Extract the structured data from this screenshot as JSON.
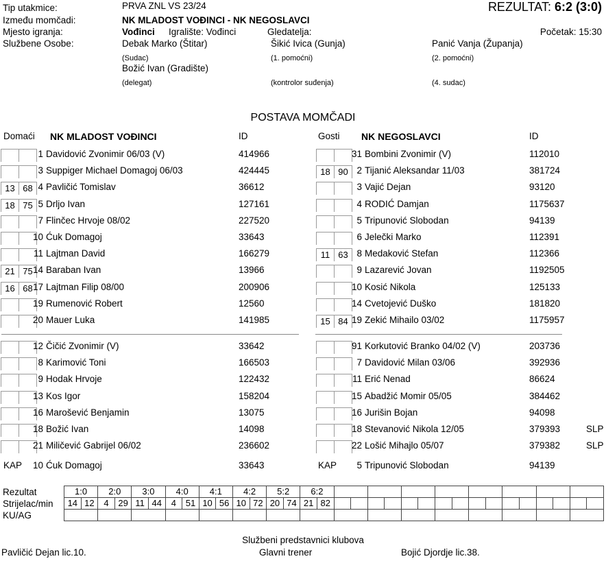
{
  "header": {
    "labels": {
      "match_type": "Tip utakmice:",
      "teams": "Između momčadi:",
      "venue": "Mjesto igranja:",
      "officials": "Službene Osobe:"
    },
    "match_type_value": "PRVA ZNL VS 23/24",
    "teams_value": "NK MLADOST VOĐINCI - NK NEGOSLAVCI",
    "venue_city": "Vođinci",
    "venue_field": "Igralište: Vođinci",
    "spectators_label": "Gledatelja:",
    "start_label": "Početak: 15:30",
    "result_label": "REZULTAT:",
    "result_value": "6:2 (3:0)",
    "officials": {
      "col1": {
        "name1": "Debak Marko (Štitar)",
        "role1": "(Sudac)",
        "name2": "Božić Ivan (Gradište)",
        "role2": "(delegat)"
      },
      "col2": {
        "name1": "Šikić Ivica (Gunja)",
        "role1": "(1. pomoćni)",
        "role2": "(kontrolor suđenja)"
      },
      "col3": {
        "name1": "Panić Vanja (Županja)",
        "role1": "(2. pomoćni)",
        "role2": "(4. sudac)"
      }
    }
  },
  "lineup": {
    "title": "POSTAVA MOMČADI",
    "home": {
      "side_label": "Domaći",
      "team_name": "NK MLADOST VOĐINCI",
      "id_label": "ID",
      "starters": [
        {
          "sub_in": "",
          "sub_min": "",
          "num": "1",
          "name": "Davidović Zvonimir 06/03 (V)",
          "id": "414966"
        },
        {
          "sub_in": "",
          "sub_min": "",
          "num": "3",
          "name": "Suppiger Michael Domagoj 06/03",
          "id": "424445"
        },
        {
          "sub_in": "13",
          "sub_min": "68",
          "num": "4",
          "name": "Pavličić Tomislav",
          "id": "36612"
        },
        {
          "sub_in": "18",
          "sub_min": "75",
          "num": "5",
          "name": "Drljo Ivan",
          "id": "127161"
        },
        {
          "sub_in": "",
          "sub_min": "",
          "num": "7",
          "name": "Flinčec Hrvoje 08/02",
          "id": "227520"
        },
        {
          "sub_in": "",
          "sub_min": "",
          "num": "10",
          "name": "Ćuk Domagoj",
          "id": "33643"
        },
        {
          "sub_in": "",
          "sub_min": "",
          "num": "11",
          "name": "Lajtman David",
          "id": "166279"
        },
        {
          "sub_in": "21",
          "sub_min": "75",
          "num": "14",
          "name": "Baraban Ivan",
          "id": "13966"
        },
        {
          "sub_in": "16",
          "sub_min": "68",
          "num": "17",
          "name": "Lajtman Filip 08/00",
          "id": "200906"
        },
        {
          "sub_in": "",
          "sub_min": "",
          "num": "19",
          "name": "Rumenović Robert",
          "id": "12560"
        },
        {
          "sub_in": "",
          "sub_min": "",
          "num": "20",
          "name": "Mauer Luka",
          "id": "141985"
        }
      ],
      "subs": [
        {
          "sub_in": "",
          "sub_min": "",
          "num": "12",
          "name": "Čičić Zvonimir  (V)",
          "id": "33642"
        },
        {
          "sub_in": "",
          "sub_min": "",
          "num": "8",
          "name": "Karimović Toni",
          "id": "166503"
        },
        {
          "sub_in": "",
          "sub_min": "",
          "num": "9",
          "name": "Hodak Hrvoje",
          "id": "122432"
        },
        {
          "sub_in": "",
          "sub_min": "",
          "num": "13",
          "name": "Kos Igor",
          "id": "158204"
        },
        {
          "sub_in": "",
          "sub_min": "",
          "num": "16",
          "name": "Marošević Benjamin",
          "id": "13075"
        },
        {
          "sub_in": "",
          "sub_min": "",
          "num": "18",
          "name": "Božić Ivan",
          "id": "14098"
        },
        {
          "sub_in": "",
          "sub_min": "",
          "num": "21",
          "name": "Miličević Gabrijel 06/02",
          "id": "236602"
        }
      ],
      "captain": {
        "label": "KAP",
        "num": "10",
        "name": "Ćuk Domagoj",
        "id": "33643"
      }
    },
    "away": {
      "side_label": "Gosti",
      "team_name": "NK NEGOSLAVCI",
      "id_label": "ID",
      "starters": [
        {
          "sub_in": "",
          "sub_min": "",
          "num": "31",
          "name": "Bombini Zvonimir  (V)",
          "id": "112010"
        },
        {
          "sub_in": "18",
          "sub_min": "90",
          "num": "2",
          "name": "Tijanić Aleksandar 11/03",
          "id": "381724"
        },
        {
          "sub_in": "",
          "sub_min": "",
          "num": "3",
          "name": "Vajić Dejan",
          "id": "93120"
        },
        {
          "sub_in": "",
          "sub_min": "",
          "num": "4",
          "name": "RODIĆ Damjan",
          "id": "1175637"
        },
        {
          "sub_in": "",
          "sub_min": "",
          "num": "5",
          "name": "Tripunović Slobodan",
          "id": "94139"
        },
        {
          "sub_in": "",
          "sub_min": "",
          "num": "6",
          "name": "Jelečki Marko",
          "id": "112391"
        },
        {
          "sub_in": "11",
          "sub_min": "63",
          "num": "8",
          "name": "Medaković Stefan",
          "id": "112366"
        },
        {
          "sub_in": "",
          "sub_min": "",
          "num": "9",
          "name": "Lazarević Jovan",
          "id": "1192505"
        },
        {
          "sub_in": "",
          "sub_min": "",
          "num": "10",
          "name": "Kosić Nikola",
          "id": "125133"
        },
        {
          "sub_in": "",
          "sub_min": "",
          "num": "14",
          "name": "Cvetojević Duško",
          "id": "181820"
        },
        {
          "sub_in": "15",
          "sub_min": "84",
          "num": "19",
          "name": "Zekić Mihailo 03/02",
          "id": "1175957"
        }
      ],
      "subs": [
        {
          "sub_in": "",
          "sub_min": "",
          "num": "91",
          "name": "Korkutović Branko 04/02 (V)",
          "id": "203736"
        },
        {
          "sub_in": "",
          "sub_min": "",
          "num": "7",
          "name": "Davidović Milan 03/06",
          "id": "392936"
        },
        {
          "sub_in": "",
          "sub_min": "",
          "num": "11",
          "name": "Erić Nenad",
          "id": "86624"
        },
        {
          "sub_in": "",
          "sub_min": "",
          "num": "15",
          "name": "Abadžić Momir 05/05",
          "id": "384462"
        },
        {
          "sub_in": "",
          "sub_min": "",
          "num": "16",
          "name": "Jurišin Bojan",
          "id": "94098"
        },
        {
          "sub_in": "",
          "sub_min": "",
          "num": "18",
          "name": "Stevanović Nikola 12/05",
          "id": "379393",
          "flag": "SLP"
        },
        {
          "sub_in": "",
          "sub_min": "",
          "num": "22",
          "name": "Lošić Mihajlo 05/07",
          "id": "379382",
          "flag": "SLP"
        }
      ],
      "captain": {
        "label": "KAP",
        "num": "5",
        "name": "Tripunović Slobodan",
        "id": "94139"
      }
    }
  },
  "score_table": {
    "row_labels": {
      "result": "Rezultat",
      "scorer": "Strijelac/min",
      "kuag": "KU/AG"
    },
    "total_cells": 16,
    "results": [
      "1:0",
      "2:0",
      "3:0",
      "4:0",
      "4:1",
      "4:2",
      "5:2",
      "6:2"
    ],
    "scorer_min": [
      [
        "14",
        "12"
      ],
      [
        "4",
        "29"
      ],
      [
        "11",
        "44"
      ],
      [
        "4",
        "51"
      ],
      [
        "10",
        "56"
      ],
      [
        "10",
        "72"
      ],
      [
        "20",
        "74"
      ],
      [
        "21",
        "82"
      ]
    ]
  },
  "footer": {
    "title": "Službeni predstavnici klubova",
    "home_rep": "Pavličić Dejan lic.10.",
    "center_label": "Glavni trener",
    "away_rep": "Bojić Djordje lic.38."
  },
  "colors": {
    "text": "#000000",
    "box_border": "#9a9a9a",
    "table_border": "#444444"
  }
}
